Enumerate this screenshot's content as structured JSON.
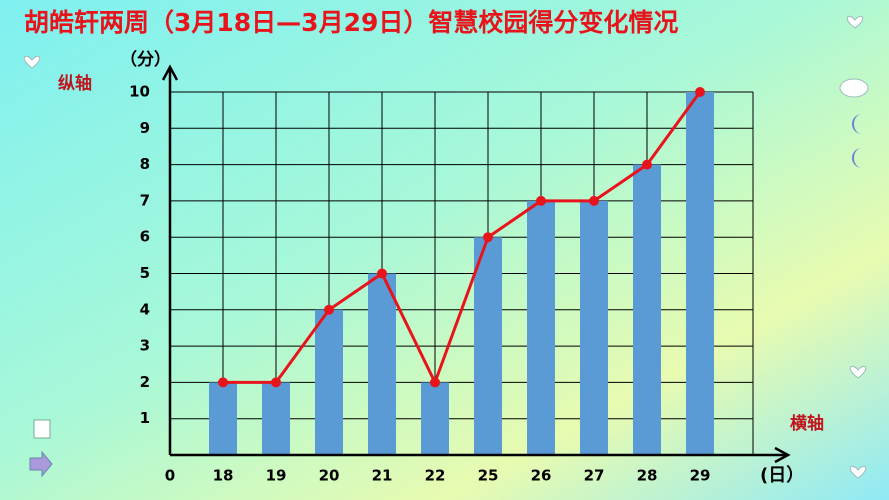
{
  "chart_data": {
    "type": "bar-line",
    "title": "胡皓轩两周（3月18日—3月29日）智慧校园得分变化情况",
    "y_axis_unit": "（分）",
    "y_axis_label": "纵轴",
    "x_axis_unit": "(日）",
    "x_axis_label": "横轴",
    "categories": [
      "18",
      "19",
      "20",
      "21",
      "22",
      "25",
      "26",
      "27",
      "28",
      "29"
    ],
    "values": [
      2,
      2,
      4,
      5,
      2,
      6,
      7,
      7,
      8,
      10
    ],
    "bar_color": "#5b9bd5",
    "line_color": "#e8141c",
    "ylim": [
      0,
      10
    ],
    "yticks": [
      0,
      1,
      2,
      3,
      4,
      5,
      6,
      7,
      8,
      9,
      10
    ],
    "grid": true
  }
}
